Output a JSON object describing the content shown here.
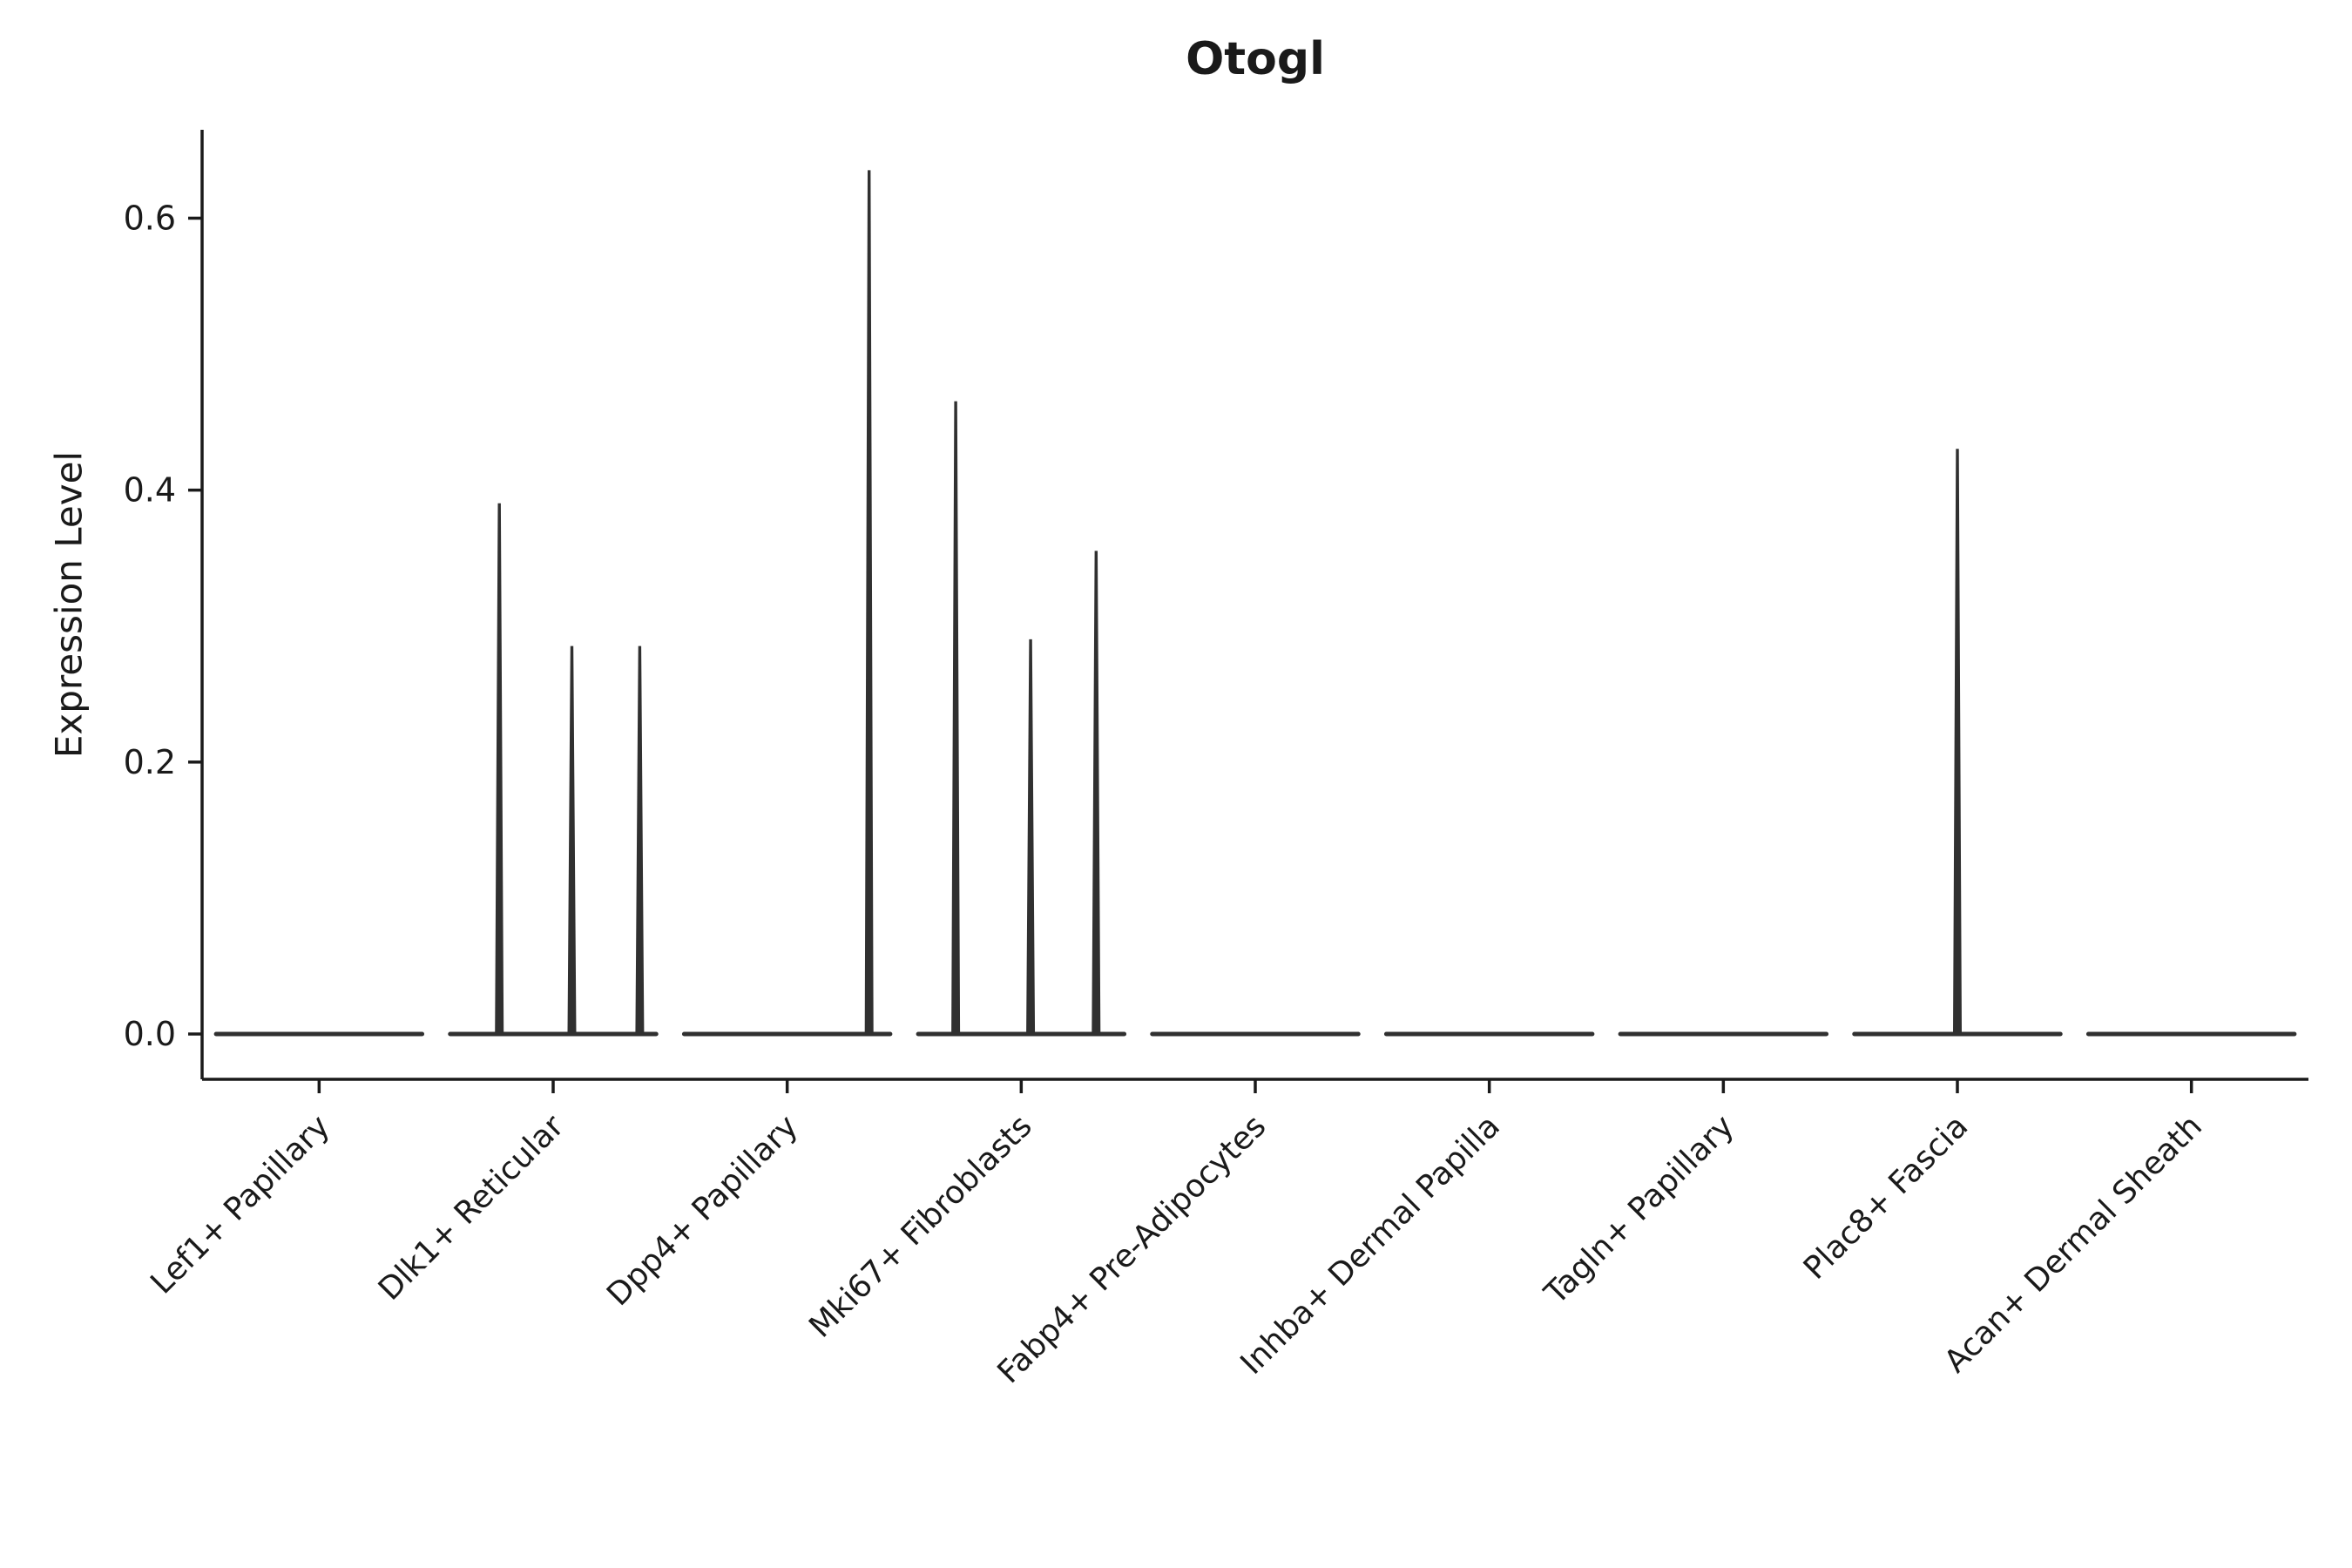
{
  "chart_data": {
    "type": "violin",
    "title": "Otogl",
    "ylabel": "Expression Level",
    "xlabel": "",
    "ylim": [
      0.0,
      0.665
    ],
    "yticks": [
      "0.0",
      "0.2",
      "0.4",
      "0.6"
    ],
    "ytick_values": [
      0.0,
      0.2,
      0.4,
      0.6
    ],
    "grid": false,
    "legend": "none",
    "axis_color": "#1a1a1a",
    "violin_color": "#303030",
    "categories": [
      "Lef1+ Papillary",
      "Dlk1+ Reticular",
      "Dpp4+ Papillary",
      "Mki67+ Fibroblasts",
      "Fabp4+ Pre-Adipocytes",
      "Inhba+ Dermal Papilla",
      "Tagln+ Papillary",
      "Plac8+ Fascia",
      "Acan+ Dermal Sheath"
    ],
    "violins": [
      {
        "category": "Lef1+ Papillary",
        "baseline_value": 0.0,
        "spikes": []
      },
      {
        "category": "Dlk1+ Reticular",
        "baseline_value": 0.0,
        "spikes": [
          {
            "offset": -0.23,
            "height": 0.39
          },
          {
            "offset": 0.08,
            "height": 0.285
          },
          {
            "offset": 0.37,
            "height": 0.285
          }
        ]
      },
      {
        "category": "Dpp4+ Papillary",
        "baseline_value": 0.0,
        "spikes": [
          {
            "offset": 0.35,
            "height": 0.635
          }
        ]
      },
      {
        "category": "Mki67+ Fibroblasts",
        "baseline_value": 0.0,
        "spikes": [
          {
            "offset": -0.28,
            "height": 0.465
          },
          {
            "offset": 0.04,
            "height": 0.29
          },
          {
            "offset": 0.32,
            "height": 0.355
          }
        ]
      },
      {
        "category": "Fabp4+ Pre-Adipocytes",
        "baseline_value": 0.0,
        "spikes": []
      },
      {
        "category": "Inhba+ Dermal Papilla",
        "baseline_value": 0.0,
        "spikes": []
      },
      {
        "category": "Tagln+ Papillary",
        "baseline_value": 0.0,
        "spikes": []
      },
      {
        "category": "Plac8+ Fascia",
        "baseline_value": 0.0,
        "spikes": [
          {
            "offset": 0.0,
            "height": 0.43
          }
        ]
      },
      {
        "category": "Acan+ Dermal Sheath",
        "baseline_value": 0.0,
        "spikes": []
      }
    ]
  }
}
